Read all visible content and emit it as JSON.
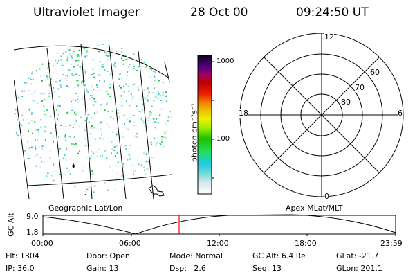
{
  "header": {
    "title": "Ultraviolet Imager",
    "date": "28 Oct 00",
    "time": "09:24:50 UT"
  },
  "left_panel": {
    "caption": "Geographic Lat/Lon"
  },
  "right_panel": {
    "caption": "Apex MLat/MLT",
    "mlt_labels": {
      "top": "12",
      "right": "6",
      "bottom": "0",
      "left": "18"
    },
    "lat_labels": [
      "60",
      "70",
      "80"
    ]
  },
  "colorbar": {
    "unit_label": "photon cm⁻²s⁻¹",
    "ticks": [
      "1000",
      "100"
    ],
    "scale": "log"
  },
  "altitude_plot": {
    "ylabel": "GC Alt",
    "yticks": [
      "9.0",
      "1.8"
    ],
    "xticks": [
      "00:00",
      "06:00",
      "12:00",
      "18:00",
      "23:59"
    ],
    "marker_time": "09:24:50",
    "marker_color": "#ff0000"
  },
  "footer": {
    "row1": [
      {
        "k": "Flt:",
        "v": "1304"
      },
      {
        "k": "Door:",
        "v": "Open"
      },
      {
        "k": "Mode:",
        "v": "Normal"
      },
      {
        "k": "GC Alt:",
        "v": "6.4 Re"
      },
      {
        "k": "GLat:",
        "v": "-21.7"
      }
    ],
    "row2": [
      {
        "k": "IP:",
        "v": "36.0"
      },
      {
        "k": "Gain:",
        "v": "13"
      },
      {
        "k": "Dsp:",
        "v": "2.6"
      },
      {
        "k": "Seq:",
        "v": "13"
      },
      {
        "k": "GLon:",
        "v": "201.1"
      }
    ]
  }
}
